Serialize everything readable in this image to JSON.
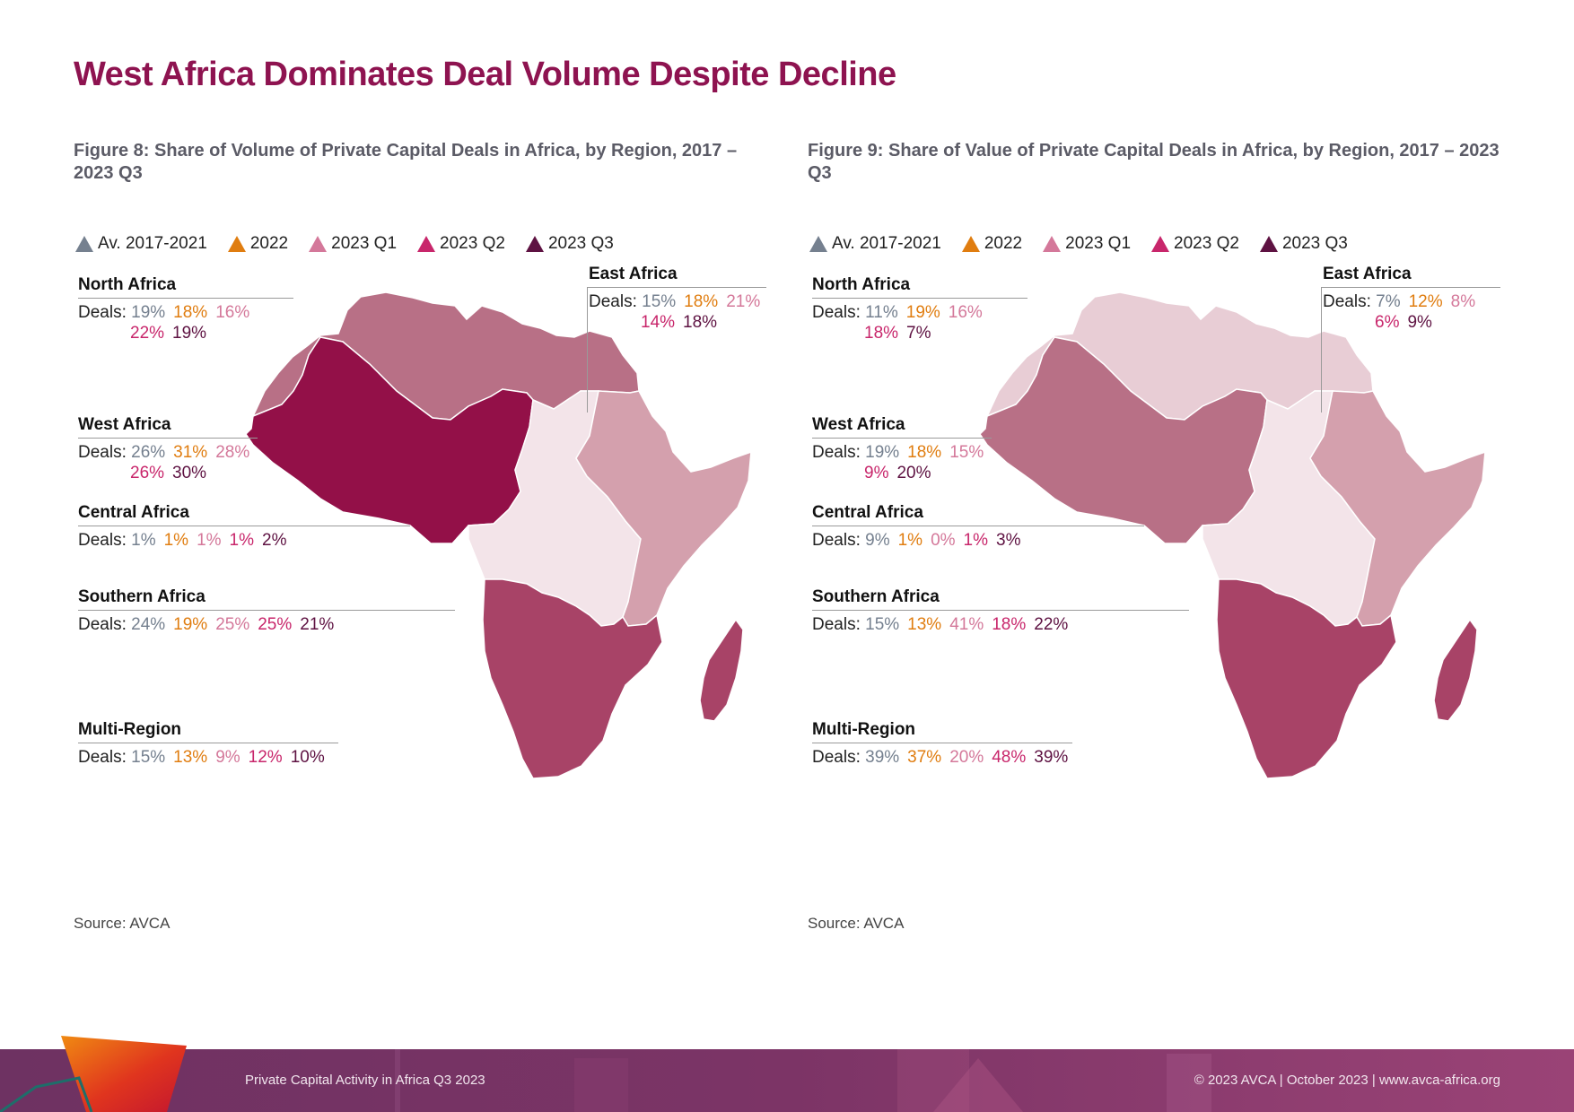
{
  "page_title": "West Africa Dominates Deal Volume Despite Decline",
  "legend": [
    {
      "label": "Av. 2017-2021",
      "color": "#75808f"
    },
    {
      "label": "2022",
      "color": "#e07d10"
    },
    {
      "label": "2023 Q1",
      "color": "#d4789a"
    },
    {
      "label": "2023 Q2",
      "color": "#c8266b"
    },
    {
      "label": "2023 Q3",
      "color": "#5e1242"
    }
  ],
  "deals_prefix": "Deals:",
  "figures": [
    {
      "title": "Figure 8: Share of Volume of Private Capital Deals in Africa, by Region, 2017 – 2023 Q3",
      "source": "Source: AVCA",
      "regions": {
        "north": {
          "name": "North Africa",
          "values": [
            "19%",
            "18%",
            "16%",
            "22%",
            "19%"
          ],
          "fill": "#b87086"
        },
        "west": {
          "name": "West Africa",
          "values": [
            "26%",
            "31%",
            "28%",
            "26%",
            "30%"
          ],
          "fill": "#931048"
        },
        "central": {
          "name": "Central Africa",
          "values": [
            "1%",
            "1%",
            "1%",
            "1%",
            "2%"
          ],
          "fill": "#f3e4e9"
        },
        "southern": {
          "name": "Southern Africa",
          "values": [
            "24%",
            "19%",
            "25%",
            "25%",
            "21%"
          ],
          "fill": "#a84367"
        },
        "east": {
          "name": "East Africa",
          "values": [
            "15%",
            "18%",
            "21%",
            "14%",
            "18%"
          ],
          "fill": "#d4a0ad"
        },
        "multi": {
          "name": "Multi-Region",
          "values": [
            "15%",
            "13%",
            "9%",
            "12%",
            "10%"
          ]
        }
      }
    },
    {
      "title": "Figure 9: Share of Value of Private Capital Deals in Africa, by Region, 2017 – 2023 Q3",
      "source": "Source: AVCA",
      "regions": {
        "north": {
          "name": "North Africa",
          "values": [
            "11%",
            "19%",
            "16%",
            "18%",
            "7%"
          ],
          "fill": "#e8cdd5"
        },
        "west": {
          "name": "West Africa",
          "values": [
            "19%",
            "18%",
            "15%",
            "9%",
            "20%"
          ],
          "fill": "#b87086"
        },
        "central": {
          "name": "Central Africa",
          "values": [
            "9%",
            "1%",
            "0%",
            "1%",
            "3%"
          ],
          "fill": "#f3e4e9"
        },
        "southern": {
          "name": "Southern Africa",
          "values": [
            "15%",
            "13%",
            "41%",
            "18%",
            "22%"
          ],
          "fill": "#a84367"
        },
        "east": {
          "name": "East Africa",
          "values": [
            "7%",
            "12%",
            "8%",
            "6%",
            "9%"
          ],
          "fill": "#d4a0ad"
        },
        "multi": {
          "name": "Multi-Region",
          "values": [
            "39%",
            "37%",
            "20%",
            "48%",
            "39%"
          ]
        }
      }
    }
  ],
  "footer": {
    "left": "Private Capital Activity in Africa Q3 2023",
    "right": "© 2023 AVCA  |  October 2023  |  www.avca-africa.org"
  }
}
